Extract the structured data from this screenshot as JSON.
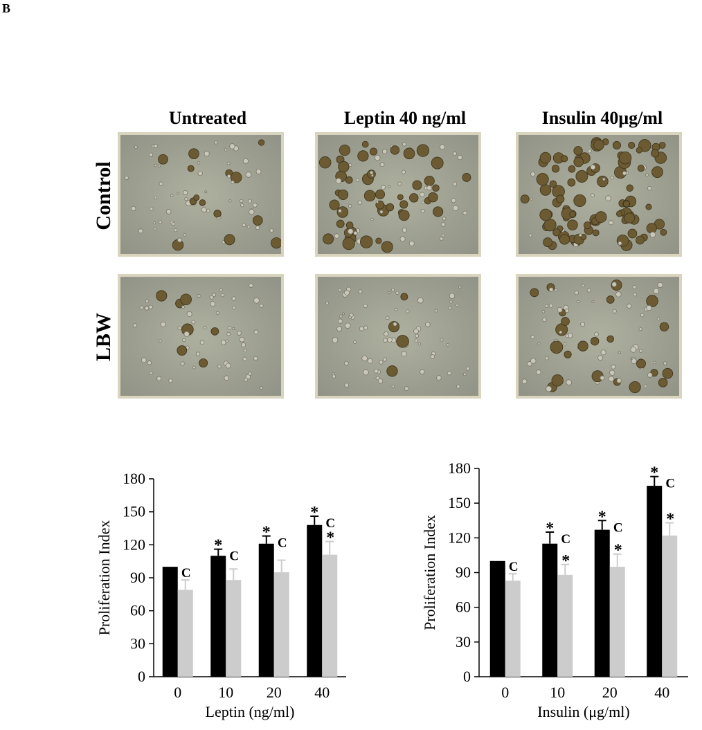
{
  "panel_label": "B",
  "micrographs": {
    "columns": [
      "Untreated",
      "Leptin 40 ng/ml",
      "Insulin 40μg/ml"
    ],
    "rows": [
      "Control",
      "LBW"
    ]
  },
  "colors": {
    "control": "#000000",
    "lbw": "#cccccc",
    "frame": "#d8d4bd"
  },
  "chart_data": [
    {
      "type": "bar",
      "title": "",
      "xlabel": "Leptin (ng/ml)",
      "ylabel": "Proliferation Index",
      "categories": [
        "0",
        "10",
        "20",
        "40"
      ],
      "ylim": [
        0,
        180
      ],
      "yticks": [
        0,
        30,
        60,
        90,
        120,
        150,
        180
      ],
      "series": [
        {
          "color": "#000000",
          "values": [
            100,
            110,
            121,
            138
          ],
          "errors": [
            0,
            6,
            7,
            8
          ],
          "annotations": [
            "",
            "*",
            "*",
            "*"
          ]
        },
        {
          "color": "#cccccc",
          "values": [
            79,
            88,
            95,
            111
          ],
          "errors": [
            9,
            10,
            11,
            12
          ],
          "annotations": [
            "C",
            "C",
            "C",
            "C *"
          ]
        }
      ]
    },
    {
      "type": "bar",
      "title": "",
      "xlabel": "Insulin (μg/ml)",
      "ylabel": "Proliferation Index",
      "categories": [
        "0",
        "10",
        "20",
        "40"
      ],
      "ylim": [
        0,
        180
      ],
      "yticks": [
        0,
        30,
        60,
        90,
        120,
        150,
        180
      ],
      "series": [
        {
          "color": "#000000",
          "values": [
            100,
            115,
            127,
            165
          ],
          "errors": [
            0,
            10,
            8,
            8
          ],
          "annotations": [
            "",
            "*",
            "*",
            "*"
          ]
        },
        {
          "color": "#cccccc",
          "values": [
            83,
            88,
            95,
            122
          ],
          "errors": [
            6,
            9,
            11,
            11
          ],
          "annotations": [
            "C",
            "C *",
            "C *",
            "C *"
          ]
        }
      ]
    }
  ]
}
